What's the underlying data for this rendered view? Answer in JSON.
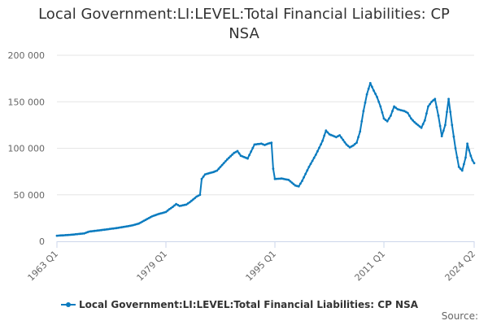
{
  "title": "Local Government:LI:LEVEL:Total Financial Liabilities: CP NSA",
  "credits": "Source:",
  "colors": {
    "series": "#0a7bbf",
    "grid": "#e6e6e6",
    "axis": "#ccd6eb",
    "text": "#333333",
    "tick_text": "#666666"
  },
  "chart_data": {
    "type": "line",
    "title": "Local Government:LI:LEVEL:Total Financial Liabilities: CP NSA",
    "xlabel": "",
    "ylabel": "",
    "x_range": [
      "1963 Q1",
      "2024 Q2"
    ],
    "ylim": [
      0,
      200000
    ],
    "y_ticks": [
      0,
      50000,
      100000,
      150000,
      200000
    ],
    "y_tick_labels": [
      "0",
      "50 000",
      "100 000",
      "150 000",
      "200 000"
    ],
    "x_ticks": [
      "1963 Q1",
      "1979 Q1",
      "1995 Q1",
      "2011 Q1",
      "2024 Q2"
    ],
    "grid": "horizontal",
    "legend_position": "bottom-left",
    "series": [
      {
        "name": "Local Government:LI:LEVEL:Total Financial Liabilities: CP NSA",
        "points": [
          [
            "1963 Q1",
            6000
          ],
          [
            "1965 Q1",
            7000
          ],
          [
            "1967 Q1",
            8500
          ],
          [
            "1967 Q4",
            10500
          ],
          [
            "1970 Q1",
            12500
          ],
          [
            "1972 Q1",
            14500
          ],
          [
            "1974 Q1",
            17000
          ],
          [
            "1975 Q1",
            19000
          ],
          [
            "1976 Q1",
            23000
          ],
          [
            "1977 Q1",
            27000
          ],
          [
            "1978 Q1",
            29500
          ],
          [
            "1979 Q1",
            31500
          ],
          [
            "1979 Q3",
            34500
          ],
          [
            "1980 Q1",
            37000
          ],
          [
            "1980 Q3",
            40000
          ],
          [
            "1981 Q1",
            38000
          ],
          [
            "1982 Q1",
            39500
          ],
          [
            "1982 Q3",
            42000
          ],
          [
            "1983 Q1",
            45000
          ],
          [
            "1983 Q3",
            48000
          ],
          [
            "1984 Q1",
            50000
          ],
          [
            "1984 Q2",
            67000
          ],
          [
            "1984 Q4",
            72000
          ],
          [
            "1985 Q2",
            73000
          ],
          [
            "1986 Q1",
            74500
          ],
          [
            "1986 Q3",
            76000
          ],
          [
            "1987 Q1",
            80000
          ],
          [
            "1988 Q1",
            88000
          ],
          [
            "1989 Q1",
            95000
          ],
          [
            "1989 Q3",
            97000
          ],
          [
            "1990 Q1",
            92000
          ],
          [
            "1991 Q1",
            89000
          ],
          [
            "1992 Q1",
            104000
          ],
          [
            "1993 Q1",
            105000
          ],
          [
            "1993 Q3",
            103500
          ],
          [
            "1994 Q1",
            105000
          ],
          [
            "1994 Q3",
            106000
          ],
          [
            "1994 Q4",
            78000
          ],
          [
            "1995 Q1",
            67000
          ],
          [
            "1996 Q1",
            67500
          ],
          [
            "1997 Q1",
            66000
          ],
          [
            "1998 Q1",
            60000
          ],
          [
            "1998 Q3",
            59000
          ],
          [
            "1999 Q1",
            65000
          ],
          [
            "2000 Q1",
            80000
          ],
          [
            "2001 Q1",
            93000
          ],
          [
            "2002 Q1",
            108000
          ],
          [
            "2002 Q3",
            119000
          ],
          [
            "2003 Q1",
            115000
          ],
          [
            "2004 Q1",
            112000
          ],
          [
            "2004 Q3",
            114000
          ],
          [
            "2005 Q1",
            109000
          ],
          [
            "2005 Q3",
            104000
          ],
          [
            "2006 Q1",
            101000
          ],
          [
            "2006 Q3",
            103000
          ],
          [
            "2007 Q1",
            106000
          ],
          [
            "2007 Q3",
            118000
          ],
          [
            "2008 Q1",
            140000
          ],
          [
            "2008 Q3",
            158000
          ],
          [
            "2009 Q1",
            170000
          ],
          [
            "2009 Q3",
            162000
          ],
          [
            "2010 Q1",
            155000
          ],
          [
            "2010 Q3",
            145000
          ],
          [
            "2011 Q1",
            132000
          ],
          [
            "2011 Q3",
            129000
          ],
          [
            "2012 Q1",
            135000
          ],
          [
            "2012 Q3",
            145000
          ],
          [
            "2013 Q1",
            142000
          ],
          [
            "2013 Q3",
            141000
          ],
          [
            "2014 Q1",
            140000
          ],
          [
            "2014 Q3",
            138000
          ],
          [
            "2015 Q1",
            132000
          ],
          [
            "2015 Q3",
            128000
          ],
          [
            "2016 Q1",
            125000
          ],
          [
            "2016 Q3",
            122000
          ],
          [
            "2017 Q1",
            130000
          ],
          [
            "2017 Q3",
            145000
          ],
          [
            "2018 Q1",
            150000
          ],
          [
            "2018 Q3",
            153000
          ],
          [
            "2019 Q1",
            135000
          ],
          [
            "2019 Q3",
            113000
          ],
          [
            "2020 Q1",
            125000
          ],
          [
            "2020 Q3",
            153000
          ],
          [
            "2021 Q1",
            125000
          ],
          [
            "2021 Q3",
            100000
          ],
          [
            "2022 Q1",
            80000
          ],
          [
            "2022 Q3",
            76000
          ],
          [
            "2023 Q1",
            90000
          ],
          [
            "2023 Q2",
            105000
          ],
          [
            "2023 Q3",
            98000
          ],
          [
            "2023 Q4",
            92000
          ],
          [
            "2024 Q1",
            87000
          ],
          [
            "2024 Q2",
            84000
          ]
        ]
      }
    ]
  }
}
